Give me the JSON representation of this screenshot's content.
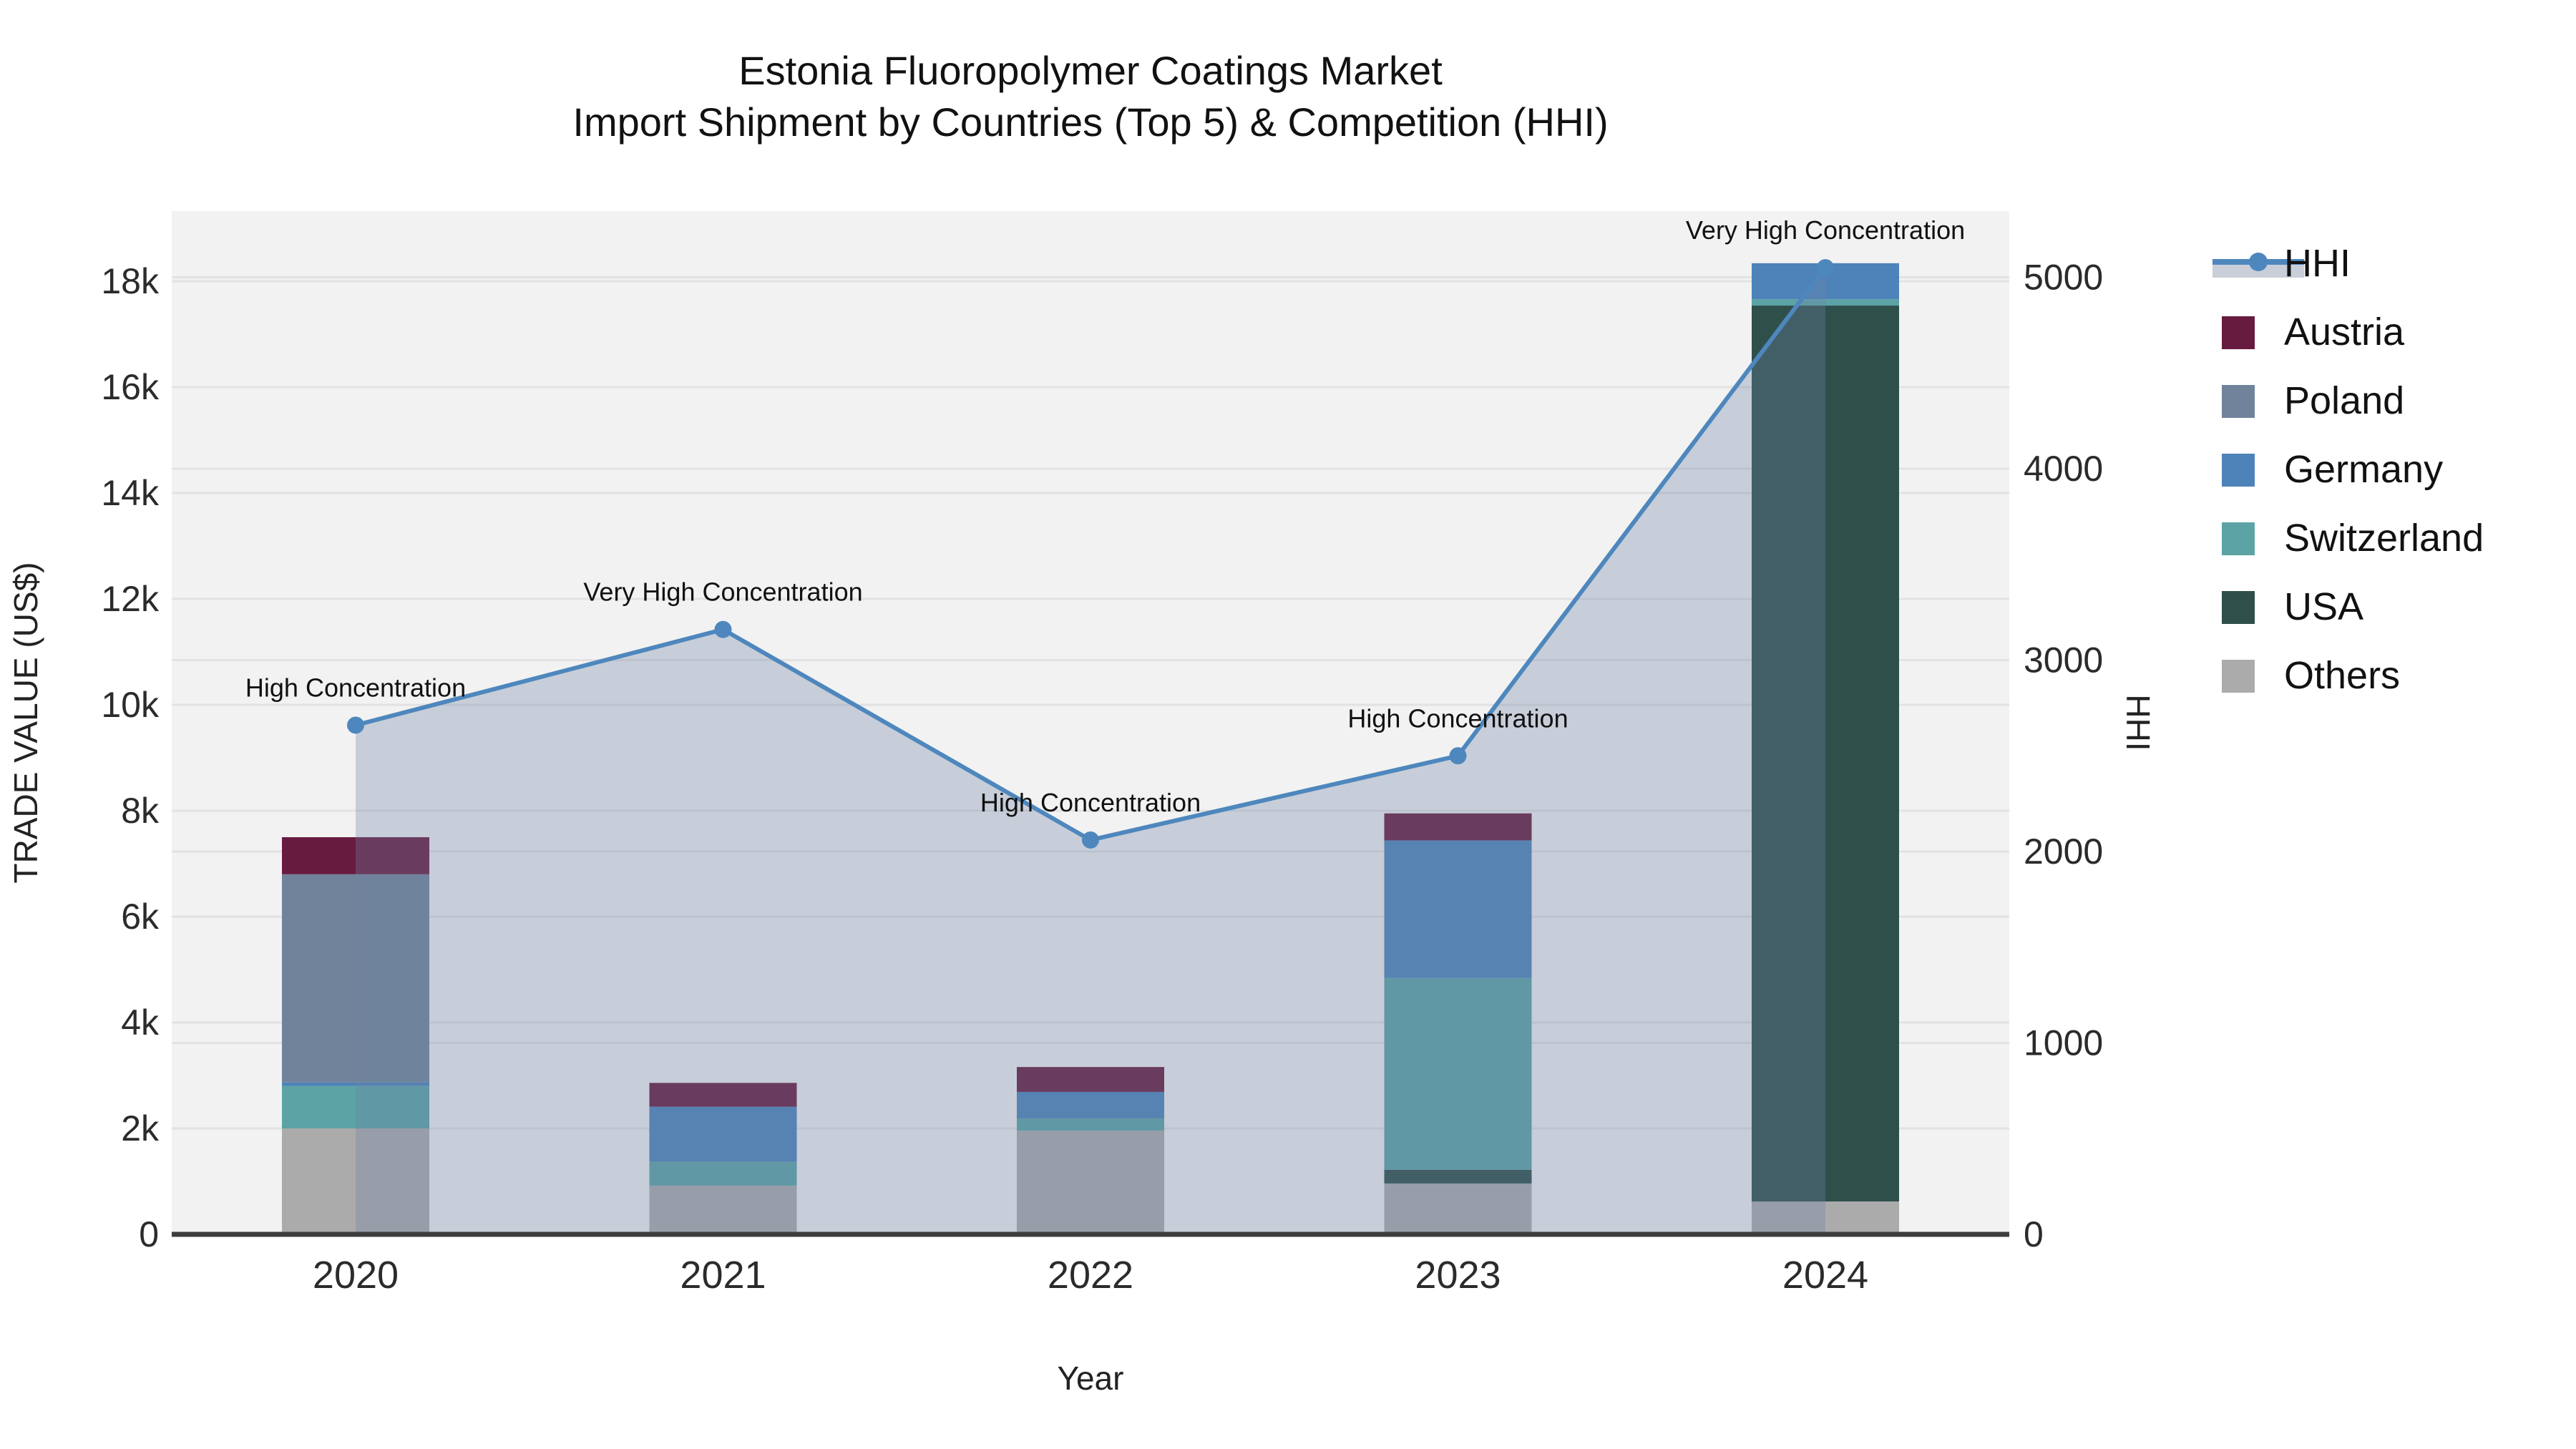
{
  "title": {
    "line1": "Estonia Fluoropolymer Coatings Market",
    "line2": "Import Shipment by Countries (Top 5) & Competition (HHI)"
  },
  "chart_data": {
    "type": "bar+line",
    "categories": [
      "2020",
      "2021",
      "2022",
      "2023",
      "2024"
    ],
    "bar_unit": "US$",
    "series": [
      {
        "name": "Austria",
        "color": "#671b3f",
        "values": [
          700,
          450,
          470,
          510,
          0
        ]
      },
      {
        "name": "Poland",
        "color": "#71839a",
        "values": [
          3930,
          0,
          0,
          0,
          0
        ]
      },
      {
        "name": "Germany",
        "color": "#4d83b8",
        "values": [
          70,
          1040,
          500,
          2600,
          680
        ]
      },
      {
        "name": "Switzerland",
        "color": "#5ca3a5",
        "values": [
          800,
          450,
          230,
          3620,
          120
        ]
      },
      {
        "name": "USA",
        "color": "#2f4f4b",
        "values": [
          0,
          0,
          0,
          260,
          16920
        ]
      },
      {
        "name": "Others",
        "color": "#ababab",
        "values": [
          2000,
          920,
          1960,
          960,
          620
        ]
      }
    ],
    "stack_order": [
      "Others",
      "USA",
      "Switzerland",
      "Germany",
      "Poland",
      "Austria"
    ],
    "bar_totals": [
      7500,
      2860,
      3160,
      7950,
      18340
    ],
    "line": {
      "name": "HHI",
      "color": "#4e87bd",
      "area_fill": "rgba(110,130,165,0.32)",
      "legend_band_color": "#c9ced9",
      "values": [
        2660,
        3160,
        2060,
        2500,
        5050
      ]
    },
    "annotations": [
      {
        "year": "2020",
        "text": "High Concentration"
      },
      {
        "year": "2021",
        "text": "Very High Concentration"
      },
      {
        "year": "2022",
        "text": "High Concentration"
      },
      {
        "year": "2023",
        "text": "High Concentration"
      },
      {
        "year": "2024",
        "text": "Very High Concentration"
      }
    ],
    "xlabel": "Year",
    "ylabel_left": "TRADE VALUE (US$)",
    "ylabel_right": "HHI",
    "yaxis_left": {
      "tick_values": [
        0,
        2000,
        4000,
        6000,
        8000,
        10000,
        12000,
        14000,
        16000,
        18000
      ],
      "tick_labels": [
        "0",
        "2k",
        "4k",
        "6k",
        "8k",
        "10k",
        "12k",
        "14k",
        "16k",
        "18k"
      ],
      "range": [
        0,
        19400
      ]
    },
    "yaxis_right": {
      "tick_values": [
        0,
        1000,
        2000,
        3000,
        4000,
        5000
      ],
      "tick_labels": [
        "0",
        "1000",
        "2000",
        "3000",
        "4000",
        "5000"
      ],
      "range": [
        0,
        5350
      ]
    },
    "legend_order": [
      "HHI",
      "Austria",
      "Poland",
      "Germany",
      "Switzerland",
      "USA",
      "Others"
    ],
    "grid": true,
    "legend_position": "right",
    "plot_bg": "#f2f2f2",
    "grid_color": "#e2e2e2",
    "axis_line_color": "#3d3d3d"
  }
}
